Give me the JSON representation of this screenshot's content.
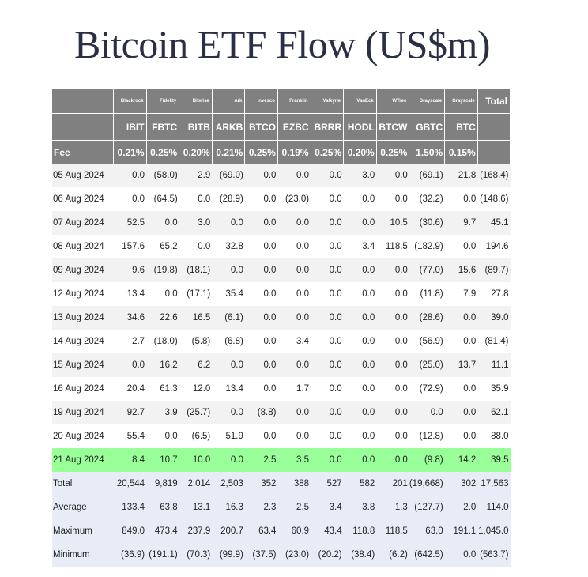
{
  "title": "Bitcoin ETF Flow (US$m)",
  "table": {
    "issuers": [
      "Blackrock",
      "Fidelity",
      "Bitwise",
      "Ark",
      "Invesco",
      "Franklin",
      "Valkyrie",
      "VanEck",
      "WTree",
      "Grayscale",
      "Grayscale"
    ],
    "tickers": [
      "IBIT",
      "FBTC",
      "BITB",
      "ARKB",
      "BTCO",
      "EZBC",
      "BRRR",
      "HODL",
      "BTCW",
      "GBTC",
      "BTC"
    ],
    "total_label": "Total",
    "fee_label": "Fee",
    "fees": [
      "0.21%",
      "0.25%",
      "0.20%",
      "0.21%",
      "0.25%",
      "0.19%",
      "0.25%",
      "0.20%",
      "0.25%",
      "1.50%",
      "0.15%"
    ],
    "rows": [
      {
        "label": "05 Aug 2024",
        "values": [
          "0.0",
          "(58.0)",
          "2.9",
          "(69.0)",
          "0.0",
          "0.0",
          "0.0",
          "3.0",
          "0.0",
          "(69.1)",
          "21.8",
          "(168.4)"
        ]
      },
      {
        "label": "06 Aug 2024",
        "values": [
          "0.0",
          "(64.5)",
          "0.0",
          "(28.9)",
          "0.0",
          "(23.0)",
          "0.0",
          "0.0",
          "0.0",
          "(32.2)",
          "0.0",
          "(148.6)"
        ]
      },
      {
        "label": "07 Aug 2024",
        "values": [
          "52.5",
          "0.0",
          "3.0",
          "0.0",
          "0.0",
          "0.0",
          "0.0",
          "0.0",
          "10.5",
          "(30.6)",
          "9.7",
          "45.1"
        ]
      },
      {
        "label": "08 Aug 2024",
        "values": [
          "157.6",
          "65.2",
          "0.0",
          "32.8",
          "0.0",
          "0.0",
          "0.0",
          "3.4",
          "118.5",
          "(182.9)",
          "0.0",
          "194.6"
        ]
      },
      {
        "label": "09 Aug 2024",
        "values": [
          "9.6",
          "(19.8)",
          "(18.1)",
          "0.0",
          "0.0",
          "0.0",
          "0.0",
          "0.0",
          "0.0",
          "(77.0)",
          "15.6",
          "(89.7)"
        ]
      },
      {
        "label": "12 Aug 2024",
        "values": [
          "13.4",
          "0.0",
          "(17.1)",
          "35.4",
          "0.0",
          "0.0",
          "0.0",
          "0.0",
          "0.0",
          "(11.8)",
          "7.9",
          "27.8"
        ]
      },
      {
        "label": "13 Aug 2024",
        "values": [
          "34.6",
          "22.6",
          "16.5",
          "(6.1)",
          "0.0",
          "0.0",
          "0.0",
          "0.0",
          "0.0",
          "(28.6)",
          "0.0",
          "39.0"
        ]
      },
      {
        "label": "14 Aug 2024",
        "values": [
          "2.7",
          "(18.0)",
          "(5.8)",
          "(6.8)",
          "0.0",
          "3.4",
          "0.0",
          "0.0",
          "0.0",
          "(56.9)",
          "0.0",
          "(81.4)"
        ]
      },
      {
        "label": "15 Aug 2024",
        "values": [
          "0.0",
          "16.2",
          "6.2",
          "0.0",
          "0.0",
          "0.0",
          "0.0",
          "0.0",
          "0.0",
          "(25.0)",
          "13.7",
          "11.1"
        ]
      },
      {
        "label": "16 Aug 2024",
        "values": [
          "20.4",
          "61.3",
          "12.0",
          "13.4",
          "0.0",
          "1.7",
          "0.0",
          "0.0",
          "0.0",
          "(72.9)",
          "0.0",
          "35.9"
        ]
      },
      {
        "label": "19 Aug 2024",
        "values": [
          "92.7",
          "3.9",
          "(25.7)",
          "0.0",
          "(8.8)",
          "0.0",
          "0.0",
          "0.0",
          "0.0",
          "0.0",
          "0.0",
          "62.1"
        ]
      },
      {
        "label": "20 Aug 2024",
        "values": [
          "55.4",
          "0.0",
          "(6.5)",
          "51.9",
          "0.0",
          "0.0",
          "0.0",
          "0.0",
          "0.0",
          "(12.8)",
          "0.0",
          "88.0"
        ]
      },
      {
        "label": "21 Aug 2024",
        "values": [
          "8.4",
          "10.7",
          "10.0",
          "0.0",
          "2.5",
          "3.5",
          "0.0",
          "0.0",
          "0.0",
          "(9.8)",
          "14.2",
          "39.5"
        ],
        "highlight": true
      },
      {
        "label": "Total",
        "values": [
          "20,544",
          "9,819",
          "2,014",
          "2,503",
          "352",
          "388",
          "527",
          "582",
          "201",
          "(19,668)",
          "302",
          "17,563"
        ],
        "summary": true
      },
      {
        "label": "Average",
        "values": [
          "133.4",
          "63.8",
          "13.1",
          "16.3",
          "2.3",
          "2.5",
          "3.4",
          "3.8",
          "1.3",
          "(127.7)",
          "2.0",
          "114.0"
        ],
        "summary": true
      },
      {
        "label": "Maximum",
        "values": [
          "849.0",
          "473.4",
          "237.9",
          "200.7",
          "63.4",
          "60.9",
          "43.4",
          "118.8",
          "118.5",
          "63.0",
          "191.1",
          "1,045.0"
        ],
        "summary": true
      },
      {
        "label": "Minimum",
        "values": [
          "(36.9)",
          "(191.1)",
          "(70.3)",
          "(99.9)",
          "(37.5)",
          "(23.0)",
          "(20.2)",
          "(38.4)",
          "(6.2)",
          "(642.5)",
          "0.0",
          "(563.7)"
        ],
        "summary": true
      }
    ]
  },
  "colors": {
    "header_bg": "#808080",
    "negative": "#e8383b",
    "highlight_row": "#99ff99",
    "summary_bg": "#e8ecf6",
    "stripe": "#f2f2f2"
  }
}
